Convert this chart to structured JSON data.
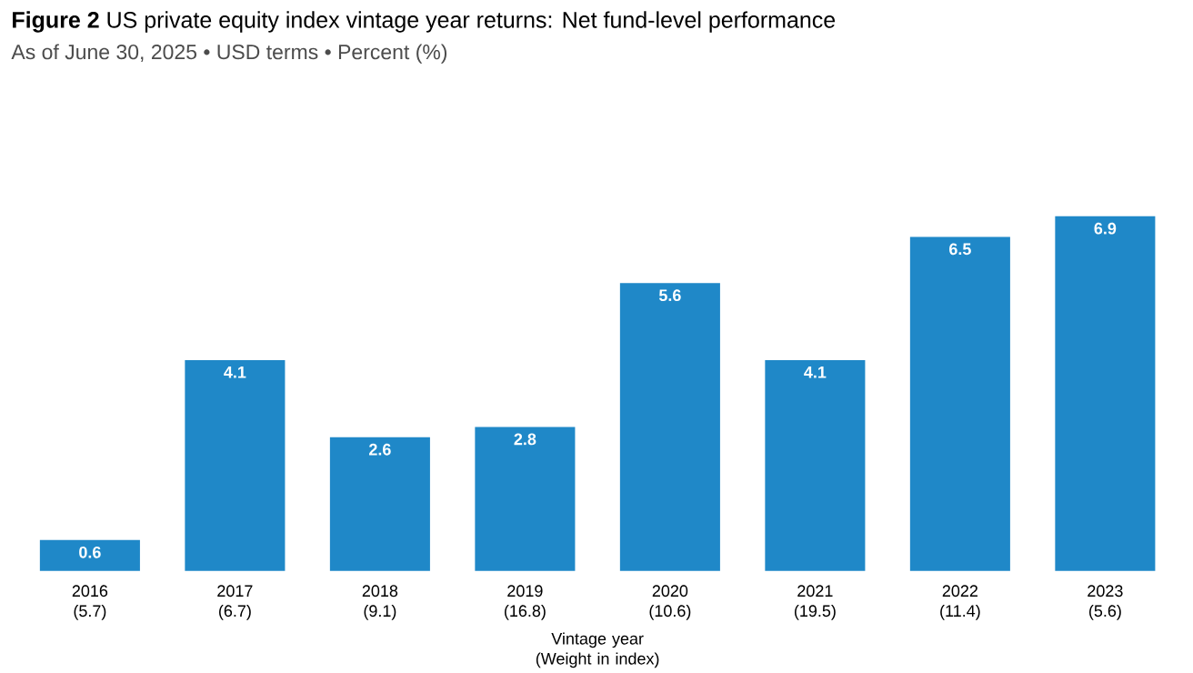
{
  "chart_data": {
    "type": "bar",
    "title": "**Figure 2** US private equity index vintage year returns: Net fund-level performance",
    "subtitle": "As of June 30, 2025 • USD terms • Percent (%)",
    "xlabel": "Vintage year (Weight in index)",
    "categories": [
      "2016 (5.7)",
      "2017 (6.7)",
      "2018 (9.1)",
      "2019 (16.8)",
      "2020 (10.6)",
      "2021 (19.5)",
      "2022 (11.4)",
      "2023 (5.6)"
    ],
    "values": [
      0.6,
      4.1,
      2.6,
      2.8,
      5.6,
      4.1,
      6.5,
      6.9
    ],
    "color": "#1f88c8",
    "data_labels": true
  }
}
